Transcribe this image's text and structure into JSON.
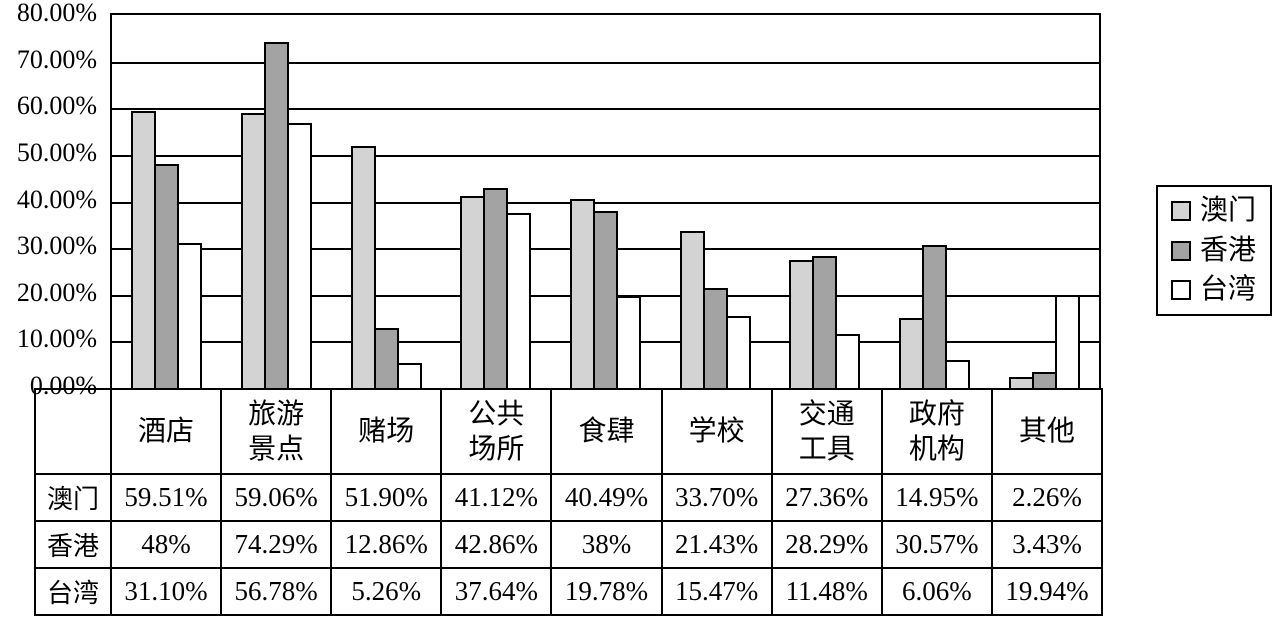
{
  "chart_data": {
    "type": "bar",
    "categories": [
      "酒店",
      "旅游\n景点",
      "赌场",
      "公共\n场所",
      "食肆",
      "学校",
      "交通\n工具",
      "政府\n机构",
      "其他"
    ],
    "series": [
      {
        "name": "澳门",
        "color": "#d3d3d3",
        "values": [
          59.51,
          59.06,
          51.9,
          41.12,
          40.49,
          33.7,
          27.36,
          14.95,
          2.26
        ]
      },
      {
        "name": "香港",
        "color": "#a3a3a3",
        "values": [
          48,
          74.29,
          12.86,
          42.86,
          38,
          21.43,
          28.29,
          30.57,
          3.43
        ]
      },
      {
        "name": "台湾",
        "color": "#ffffff",
        "values": [
          31.1,
          56.78,
          5.26,
          37.64,
          19.78,
          15.47,
          11.48,
          6.06,
          19.94
        ]
      }
    ],
    "ylim": [
      0,
      80
    ],
    "ytick_step": 10,
    "ytick_labels": [
      "80.00%",
      "70.00%",
      "60.00%",
      "50.00%",
      "40.00%",
      "30.00%",
      "20.00%",
      "10.00%",
      "0.00%"
    ],
    "grid": true,
    "legend_position": "right",
    "title": "",
    "xlabel": "",
    "ylabel": ""
  },
  "legend": {
    "items": [
      {
        "label": "澳门",
        "color": "#d3d3d3"
      },
      {
        "label": "香港",
        "color": "#a3a3a3"
      },
      {
        "label": "台湾",
        "color": "#ffffff"
      }
    ]
  },
  "table": {
    "column_headers": [
      "酒店",
      "旅游\n景点",
      "赌场",
      "公共\n场所",
      "食肆",
      "学校",
      "交通\n工具",
      "政府\n机构",
      "其他"
    ],
    "rows": [
      {
        "label": "澳门",
        "values": [
          "59.51%",
          "59.06%",
          "51.90%",
          "41.12%",
          "40.49%",
          "33.70%",
          "27.36%",
          "14.95%",
          "2.26%"
        ]
      },
      {
        "label": "香港",
        "values": [
          "48%",
          "74.29%",
          "12.86%",
          "42.86%",
          "38%",
          "21.43%",
          "28.29%",
          "30.57%",
          "3.43%"
        ]
      },
      {
        "label": "台湾",
        "values": [
          "31.10%",
          "56.78%",
          "5.26%",
          "37.64%",
          "19.78%",
          "15.47%",
          "11.48%",
          "6.06%",
          "19.94%"
        ]
      }
    ]
  },
  "colors": {
    "axis": "#000000",
    "grid": "#000000",
    "background": "#ffffff",
    "bar_border": "#000000"
  }
}
